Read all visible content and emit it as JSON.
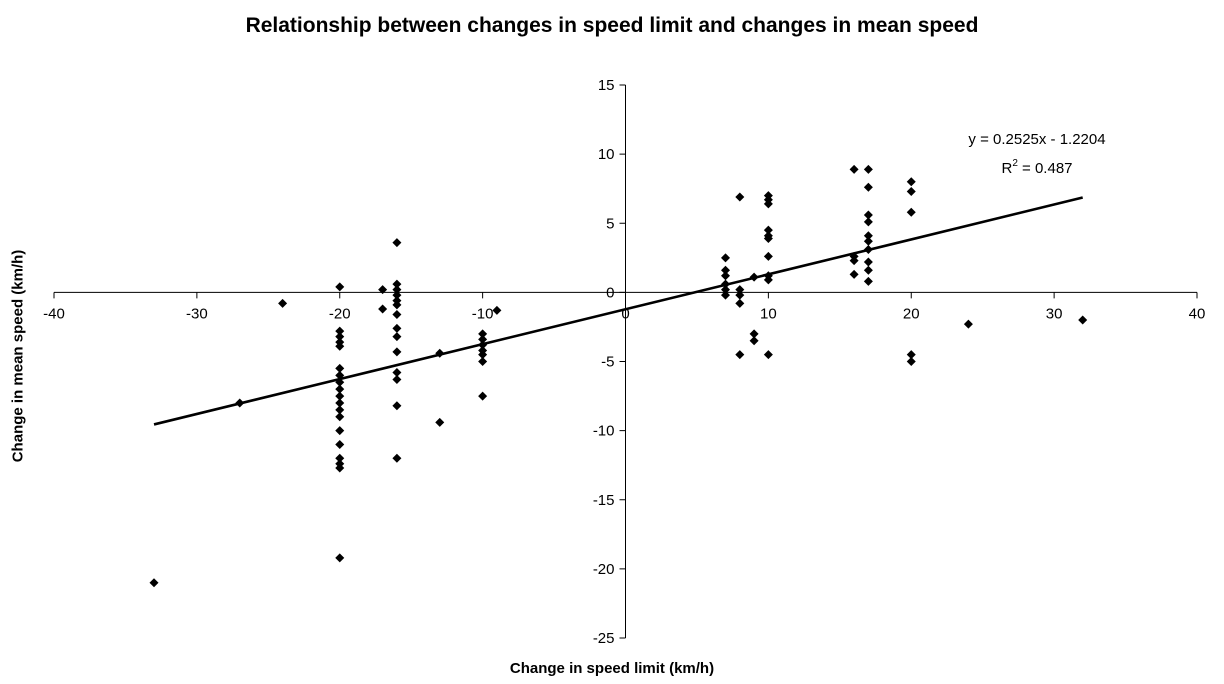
{
  "chart_data": {
    "type": "scatter",
    "title": "Relationship between changes in speed limit and changes in mean speed",
    "xlabel": "Change in speed limit (km/h)",
    "ylabel": "Change in mean speed (km/h)",
    "xlim": [
      -40,
      40
    ],
    "ylim": [
      -25,
      15
    ],
    "xticks": [
      -40,
      -30,
      -20,
      -10,
      0,
      10,
      20,
      30,
      40
    ],
    "yticks": [
      -25,
      -20,
      -15,
      -10,
      -5,
      0,
      5,
      10,
      15
    ],
    "grid": false,
    "marker": "diamond",
    "color": "#000000",
    "points": [
      [
        -33,
        -21
      ],
      [
        -27,
        -8
      ],
      [
        -24,
        -0.8
      ],
      [
        -20,
        0.4
      ],
      [
        -20,
        -2.8
      ],
      [
        -20,
        -3.2
      ],
      [
        -20,
        -3.6
      ],
      [
        -20,
        -3.9
      ],
      [
        -20,
        -5.5
      ],
      [
        -20,
        -6
      ],
      [
        -20,
        -6.5
      ],
      [
        -20,
        -7
      ],
      [
        -20,
        -7.5
      ],
      [
        -20,
        -8
      ],
      [
        -20,
        -8.5
      ],
      [
        -20,
        -9
      ],
      [
        -20,
        -10
      ],
      [
        -20,
        -11
      ],
      [
        -20,
        -12
      ],
      [
        -20,
        -12.4
      ],
      [
        -20,
        -12.7
      ],
      [
        -20,
        -19.2
      ],
      [
        -17,
        0.2
      ],
      [
        -17,
        -1.2
      ],
      [
        -16,
        3.6
      ],
      [
        -16,
        0.6
      ],
      [
        -16,
        0.2
      ],
      [
        -16,
        -0.2
      ],
      [
        -16,
        -0.6
      ],
      [
        -16,
        -0.9
      ],
      [
        -16,
        -1.6
      ],
      [
        -16,
        -2.6
      ],
      [
        -16,
        -3.2
      ],
      [
        -16,
        -4.3
      ],
      [
        -16,
        -5.8
      ],
      [
        -16,
        -6.3
      ],
      [
        -16,
        -8.2
      ],
      [
        -16,
        -12
      ],
      [
        -13,
        -4.4
      ],
      [
        -13,
        -9.4
      ],
      [
        -10,
        -3
      ],
      [
        -10,
        -3.4
      ],
      [
        -10,
        -3.8
      ],
      [
        -10,
        -4.2
      ],
      [
        -10,
        -4.5
      ],
      [
        -10,
        -5
      ],
      [
        -10,
        -7.5
      ],
      [
        -9,
        -1.3
      ],
      [
        7,
        2.5
      ],
      [
        7,
        1.6
      ],
      [
        7,
        1.2
      ],
      [
        7,
        0.6
      ],
      [
        7,
        0.2
      ],
      [
        7,
        -0.2
      ],
      [
        8,
        6.9
      ],
      [
        8,
        0.2
      ],
      [
        8,
        -0.2
      ],
      [
        8,
        -0.8
      ],
      [
        8,
        -4.5
      ],
      [
        9,
        1.1
      ],
      [
        9,
        -3
      ],
      [
        9,
        -3.5
      ],
      [
        10,
        7
      ],
      [
        10,
        6.7
      ],
      [
        10,
        6.4
      ],
      [
        10,
        4.5
      ],
      [
        10,
        4.1
      ],
      [
        10,
        3.9
      ],
      [
        10,
        2.6
      ],
      [
        10,
        1.2
      ],
      [
        10,
        0.9
      ],
      [
        10,
        -4.5
      ],
      [
        16,
        8.9
      ],
      [
        16,
        2.6
      ],
      [
        16,
        2.3
      ],
      [
        16,
        1.3
      ],
      [
        17,
        8.9
      ],
      [
        17,
        7.6
      ],
      [
        17,
        5.6
      ],
      [
        17,
        5.1
      ],
      [
        17,
        4.1
      ],
      [
        17,
        3.7
      ],
      [
        17,
        3.1
      ],
      [
        17,
        2.2
      ],
      [
        17,
        1.6
      ],
      [
        17,
        0.8
      ],
      [
        20,
        8
      ],
      [
        20,
        7.3
      ],
      [
        20,
        5.8
      ],
      [
        20,
        -4.5
      ],
      [
        20,
        -5
      ],
      [
        24,
        -2.3
      ],
      [
        32,
        -2
      ]
    ],
    "trendline": {
      "slope": 0.2525,
      "intercept": -1.2204,
      "x_range": [
        -33,
        32
      ],
      "equation_label": "y = 0.2525x - 1.2204",
      "r2_prefix": "R",
      "r2_sup": "2",
      "r2_suffix": " = 0.487"
    }
  }
}
